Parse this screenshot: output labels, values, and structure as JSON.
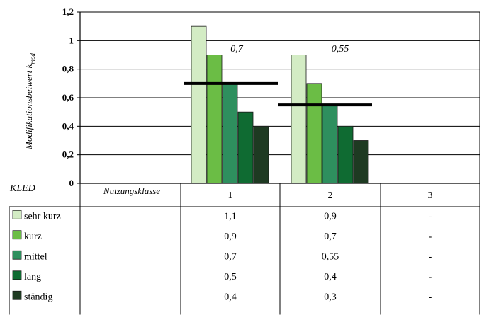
{
  "chart_data": {
    "type": "bar",
    "ylabel": "Modifikationsbeiwert k",
    "ylabel_sub": "mod",
    "ylim": [
      0,
      1.2
    ],
    "yticks": [
      "0",
      "0,2",
      "0,4",
      "0,6",
      "0,8",
      "1",
      "1,2"
    ],
    "grid": true,
    "categories": [
      "1",
      "2",
      "3"
    ],
    "series": [
      {
        "name": "sehr kurz",
        "values": [
          1.1,
          0.9,
          null
        ],
        "color": "#d3ecc4"
      },
      {
        "name": "kurz",
        "values": [
          0.9,
          0.7,
          null
        ],
        "color": "#6bbd45"
      },
      {
        "name": "mittel",
        "values": [
          0.7,
          0.55,
          null
        ],
        "color": "#2e8f5e"
      },
      {
        "name": "lang",
        "values": [
          0.5,
          0.4,
          null
        ],
        "color": "#0f6b32"
      },
      {
        "name": "ständig",
        "values": [
          0.4,
          0.3,
          null
        ],
        "color": "#1e3a22"
      }
    ],
    "reference_lines": [
      {
        "category": "1",
        "value": 0.7,
        "label": "0,7"
      },
      {
        "category": "2",
        "value": 0.55,
        "label": "0,55"
      }
    ]
  },
  "table": {
    "kled_label": "KLED",
    "header_label": "Nutzungsklasse",
    "columns": [
      "1",
      "2",
      "3"
    ],
    "rows": [
      {
        "label": "sehr kurz",
        "values": [
          "1,1",
          "0,9",
          "-"
        ]
      },
      {
        "label": "kurz",
        "values": [
          "0,9",
          "0,7",
          "-"
        ]
      },
      {
        "label": "mittel",
        "values": [
          "0,7",
          "0,55",
          "-"
        ]
      },
      {
        "label": "lang",
        "values": [
          "0,5",
          "0,4",
          "-"
        ]
      },
      {
        "label": "ständig",
        "values": [
          "0,4",
          "0,3",
          "-"
        ]
      }
    ]
  }
}
